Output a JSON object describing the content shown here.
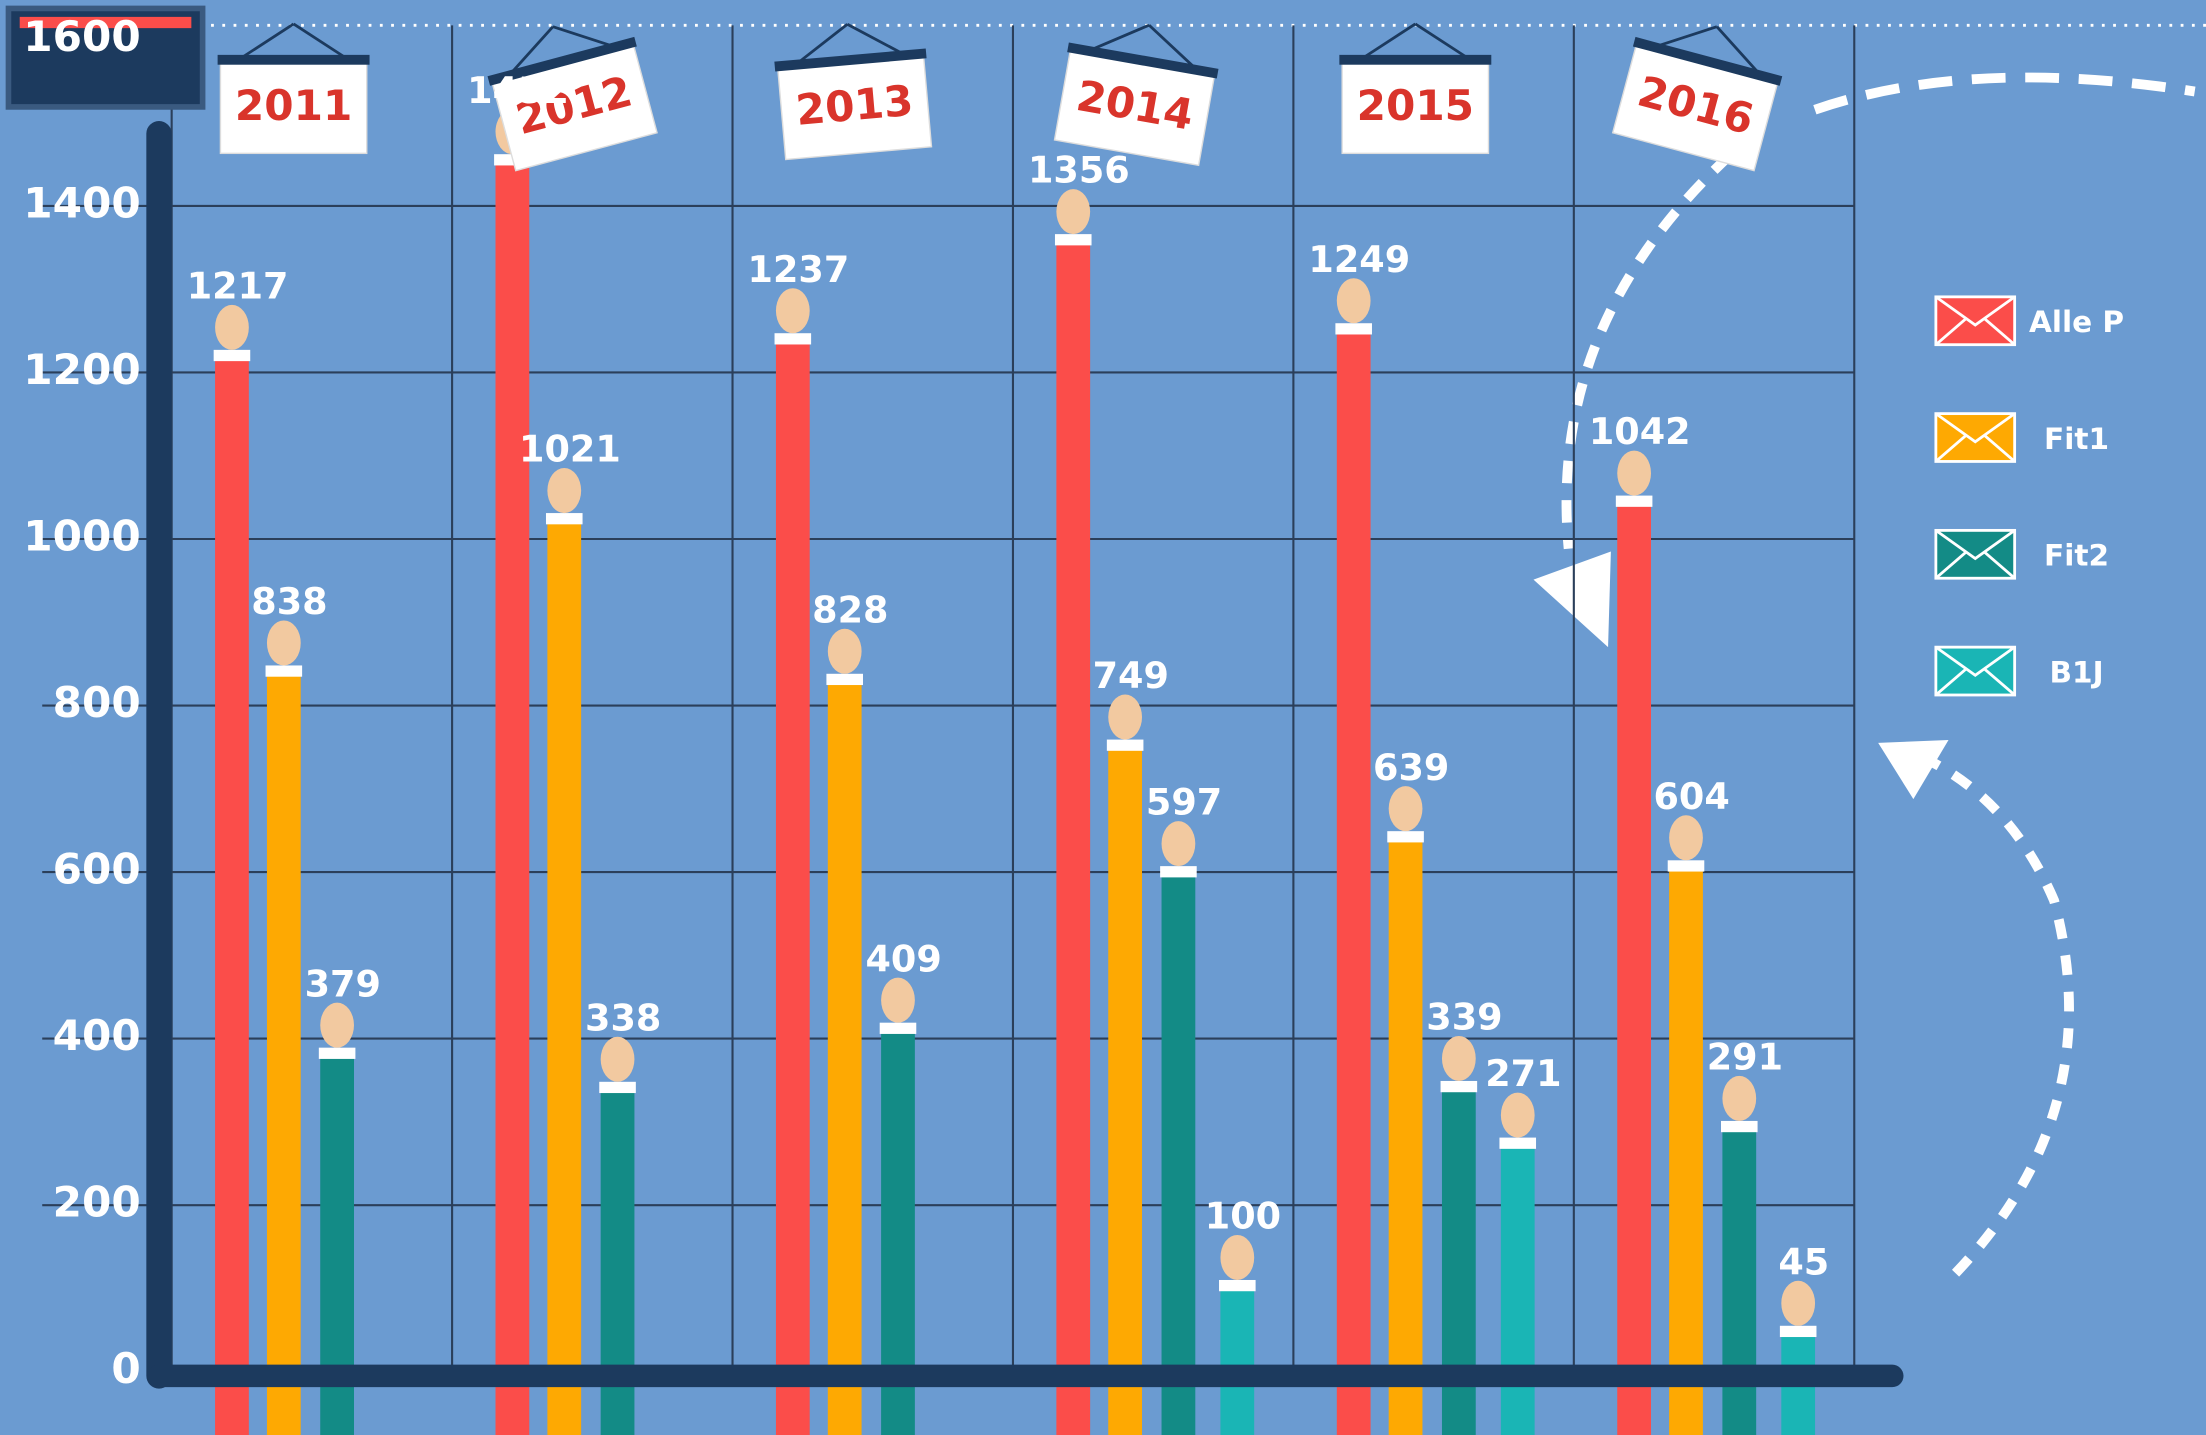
{
  "chart_data": {
    "type": "bar",
    "categories": [
      "2011",
      "2012",
      "2013",
      "2014",
      "2015",
      "2016"
    ],
    "series": [
      {
        "name": "Alle P",
        "color": "#fb4d4a",
        "values": [
          1217,
          1452,
          1237,
          1356,
          1249,
          1042
        ]
      },
      {
        "name": "Fit1",
        "color": "#fea902",
        "values": [
          838,
          1021,
          828,
          749,
          639,
          604
        ]
      },
      {
        "name": "Fit2",
        "color": "#138b86",
        "values": [
          379,
          338,
          409,
          597,
          339,
          291
        ]
      },
      {
        "name": "B1J",
        "color": "#1ab5b5",
        "values": [
          null,
          null,
          null,
          100,
          271,
          45
        ]
      }
    ],
    "ylim": [
      0,
      1600
    ],
    "yticks": [
      0,
      200,
      400,
      600,
      800,
      1000,
      1200,
      1400,
      1600
    ],
    "grid": true
  }
}
